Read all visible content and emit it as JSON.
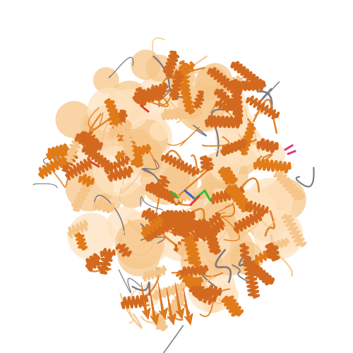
{
  "scene": {
    "subject": "protein-ribbon-cartoon",
    "colors": {
      "background": "#ffffff",
      "helix_dark": "#d2691e",
      "helix_mid": "#e07b1a",
      "helix_light": "#f5c58a",
      "coil_light": "#fde2bf",
      "loop_grey": "#6f6f78",
      "ligand_green": "#2fbf3a",
      "ligand_blue": "#3a5fd8",
      "ligand_red": "#e53935",
      "ligand_magenta": "#e0337a"
    }
  }
}
